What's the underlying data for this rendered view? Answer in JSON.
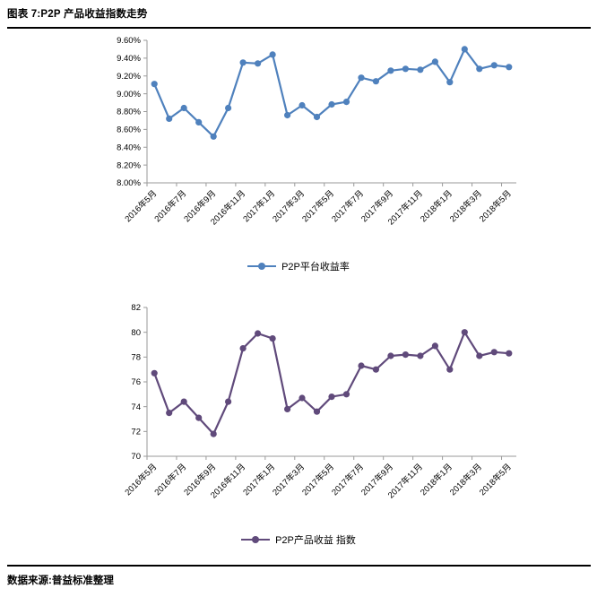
{
  "page": {
    "title": "图表 7:P2P 产品收益指数走势",
    "source": "数据来源:普益标准整理"
  },
  "chart_data": [
    {
      "type": "line",
      "title": "",
      "legend": "P2P平台收益率",
      "legend_position": "bottom",
      "color": "#4F81BD",
      "grid": false,
      "xlabel": "",
      "ylabel": "",
      "ylim": [
        8.0,
        9.6
      ],
      "ytick_step": 0.2,
      "y_format": {
        "decimals": 2,
        "suffix": "%"
      },
      "label_every": 2,
      "categories": [
        "2016年5月",
        "2016年6月",
        "2016年7月",
        "2016年8月",
        "2016年9月",
        "2016年10月",
        "2016年11月",
        "2016年12月",
        "2017年1月",
        "2017年2月",
        "2017年3月",
        "2017年4月",
        "2017年5月",
        "2017年6月",
        "2017年7月",
        "2017年8月",
        "2017年9月",
        "2017年10月",
        "2017年11月",
        "2017年12月",
        "2018年1月",
        "2018年2月",
        "2018年3月",
        "2018年4月",
        "2018年5月"
      ],
      "shown_tick_labels": [
        "2016年5月",
        "2016年7月",
        "2016年9月",
        "2016年11月",
        "2017年1月",
        "2017年3月",
        "2017年5月",
        "2017年7月",
        "2017年9月",
        "2017年11月",
        "2018年1月",
        "2018年3月",
        "2018年5月"
      ],
      "values": [
        9.11,
        8.72,
        8.84,
        8.68,
        8.52,
        8.84,
        9.35,
        9.34,
        9.44,
        8.76,
        8.87,
        8.74,
        8.88,
        8.91,
        9.18,
        9.14,
        9.26,
        9.28,
        9.27,
        9.36,
        9.13,
        9.5,
        9.28,
        9.32,
        9.3
      ]
    },
    {
      "type": "line",
      "title": "",
      "legend": "P2P产品收益 指数",
      "legend_position": "bottom",
      "color": "#604A7B",
      "grid": false,
      "xlabel": "",
      "ylabel": "",
      "ylim": [
        70,
        82
      ],
      "ytick_step": 2,
      "y_format": {
        "decimals": 0,
        "suffix": ""
      },
      "label_every": 2,
      "categories": [
        "2016年5月",
        "2016年6月",
        "2016年7月",
        "2016年8月",
        "2016年9月",
        "2016年10月",
        "2016年11月",
        "2016年12月",
        "2017年1月",
        "2017年2月",
        "2017年3月",
        "2017年4月",
        "2017年5月",
        "2017年6月",
        "2017年7月",
        "2017年8月",
        "2017年9月",
        "2017年10月",
        "2017年11月",
        "2017年12月",
        "2018年1月",
        "2018年2月",
        "2018年3月",
        "2018年4月",
        "2018年5月"
      ],
      "shown_tick_labels": [
        "2016年5月",
        "2016年7月",
        "2016年9月",
        "2016年11月",
        "2017年1月",
        "2017年3月",
        "2017年5月",
        "2017年7月",
        "2017年9月",
        "2017年11月",
        "2018年1月",
        "2018年3月",
        "2018年5月"
      ],
      "values": [
        76.7,
        73.5,
        74.4,
        73.1,
        71.8,
        74.4,
        78.7,
        79.9,
        79.5,
        73.8,
        74.7,
        73.6,
        74.8,
        75.0,
        77.3,
        77.0,
        78.1,
        78.2,
        78.1,
        78.9,
        77.0,
        80.0,
        78.1,
        78.4,
        78.3
      ]
    }
  ]
}
